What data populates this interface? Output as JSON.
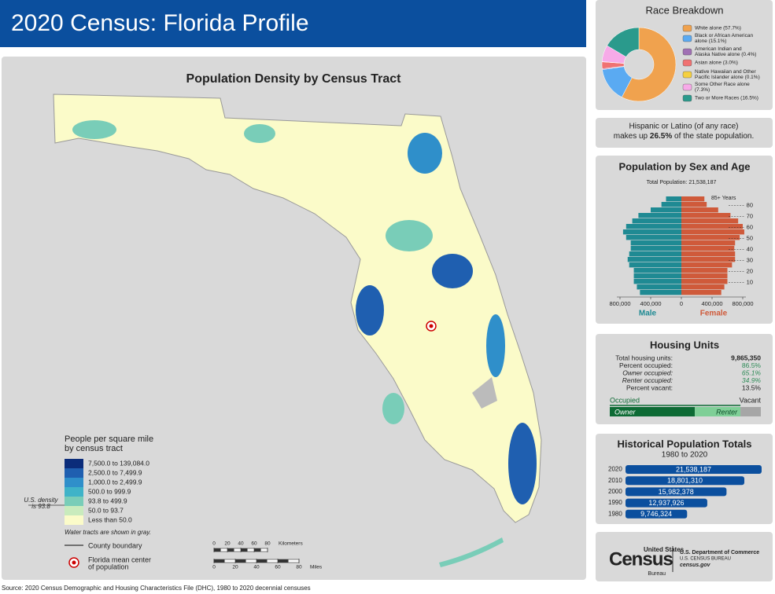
{
  "header": {
    "title": "2020 Census: Florida Profile"
  },
  "map": {
    "title": "Population Density by Census Tract",
    "legend_title": [
      "People per square mile",
      "by census tract"
    ],
    "legend": [
      {
        "label": "7,500.0 to 139,084.0",
        "color": "#0b2c7a"
      },
      {
        "label": "2,500.0 to 7,499.9",
        "color": "#1f5fb0"
      },
      {
        "label": "1,000.0 to 2,499.9",
        "color": "#2f8fca"
      },
      {
        "label": "500.0 to 999.9",
        "color": "#3fb3c8"
      },
      {
        "label": "93.8 to 499.9",
        "color": "#79cdb8"
      },
      {
        "label": "50.0 to 93.7",
        "color": "#c9ebbd"
      },
      {
        "label": "Less than 50.0",
        "color": "#fbfbc9"
      }
    ],
    "us_density": [
      "U.S. density",
      "is 93.8"
    ],
    "water_note": "Water tracts are shown in gray.",
    "county_boundary": "County boundary",
    "mean_center": [
      "Florida mean center",
      "of population"
    ],
    "scale_km": {
      "ticks": [
        0,
        20,
        40,
        60,
        80
      ],
      "unit": "Kilometers"
    },
    "scale_mi": {
      "ticks": [
        0,
        20,
        40,
        60,
        80
      ],
      "unit": "Miles"
    }
  },
  "race": {
    "title": "Race Breakdown",
    "items": [
      {
        "lines": [
          "White alone (57.7%)"
        ],
        "value": 57.7,
        "color": "#f0a24e"
      },
      {
        "lines": [
          "Black or African American",
          "alone (15.1%)"
        ],
        "value": 15.1,
        "color": "#5aaaf2"
      },
      {
        "lines": [
          "American Indian and",
          "Alaska Native alone (0.4%)"
        ],
        "value": 0.4,
        "color": "#a070b4"
      },
      {
        "lines": [
          "Asian alone (3.0%)"
        ],
        "value": 3.0,
        "color": "#f07272"
      },
      {
        "lines": [
          "Native Hawaiian and Other",
          "Pacific Islander alone (0.1%)"
        ],
        "value": 0.1,
        "color": "#f5d040"
      },
      {
        "lines": [
          "Some Other Race alone",
          "(7.3%)"
        ],
        "value": 7.3,
        "color": "#f7aae8"
      },
      {
        "lines": [
          "Two or More Races (16.5%)"
        ],
        "value": 16.5,
        "color": "#2a9a8c"
      }
    ]
  },
  "hispanic": {
    "line1": "Hispanic or Latino (of any race)",
    "pre": "makes up ",
    "value": "26.5%",
    "post": " of the state population."
  },
  "pyramid": {
    "title": "Population by Sex and Age",
    "total": "Total Population: 21,538,187",
    "male_label": "Male",
    "female_label": "Female",
    "top_label": "85+ Years",
    "age_ticks": [
      10,
      20,
      30,
      40,
      50,
      60,
      70,
      80
    ],
    "xticks": [
      0,
      {
        "value": 400000,
        "label": "400,000"
      },
      {
        "value": 800000,
        "label": "800,000"
      }
    ],
    "male": [
      540000,
      580000,
      620000,
      620000,
      620000,
      680000,
      700000,
      680000,
      660000,
      660000,
      720000,
      760000,
      720000,
      640000,
      560000,
      400000,
      260000,
      200000
    ],
    "female": [
      520000,
      560000,
      600000,
      600000,
      600000,
      660000,
      700000,
      700000,
      690000,
      700000,
      760000,
      820000,
      800000,
      740000,
      640000,
      480000,
      330000,
      300000
    ]
  },
  "housing": {
    "title": "Housing Units",
    "rows": [
      {
        "label": "Total housing units:",
        "value": "9,865,350"
      },
      {
        "label": "Percent occupied:",
        "value": "86.5%"
      },
      {
        "label": "Owner occupied:",
        "value": "65.1%"
      },
      {
        "label": "Renter occupied:",
        "value": "34.9%"
      },
      {
        "label": "Percent vacant:",
        "value": "13.5%"
      }
    ],
    "occupied": "Occupied",
    "vacant": "Vacant",
    "owner": "Owner",
    "renter": "Renter"
  },
  "historical": {
    "title": "Historical Population Totals",
    "subtitle": "1980 to 2020",
    "years": [
      "2020",
      "2010",
      "2000",
      "1990",
      "1980"
    ],
    "values": [
      21538187,
      18801310,
      15982378,
      12937926,
      9746324
    ],
    "value_labels": [
      "21,538,187",
      "18,801,310",
      "15,982,378",
      "12,937,926",
      "9,746,324"
    ]
  },
  "logo": {
    "top": "United States",
    "name": "Census",
    "bureau": "Bureau",
    "dept": "U.S. Department of Commerce",
    "sub": "U.S. CENSUS BUREAU",
    "url": "census.gov"
  },
  "source": "Source: 2020 Census Demographic and Housing Characteristics File (DHC), 1980 to 2020 decennial censuses"
}
